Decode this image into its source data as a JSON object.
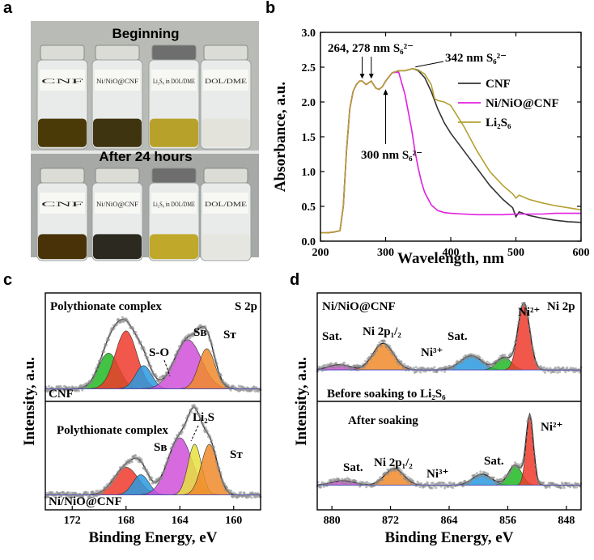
{
  "panels": {
    "a": "a",
    "b": "b",
    "c": "c",
    "d": "d"
  },
  "photo": {
    "top_caption": "Beginning",
    "bottom_caption": "After 24 hours",
    "vials": [
      {
        "label": "CNF",
        "liquid": "#4a3a08"
      },
      {
        "label": "Ni/NiO@CNF",
        "liquid": "#3e3410"
      },
      {
        "label": "Li₂S₆ in DOL/DME",
        "liquid": "#b8a12a"
      },
      {
        "label": "DOL/DME",
        "liquid": "#e3e3dc"
      }
    ],
    "vials_after": [
      {
        "label": "CNF",
        "liquid": "#4a3208"
      },
      {
        "label": "Ni/NiO@CNF",
        "liquid": "#2c2a20"
      },
      {
        "label": "Li₂S₆ in DOL/DME",
        "liquid": "#c0a82a"
      },
      {
        "label": "DOL/DME",
        "liquid": "#e6e6e0"
      }
    ]
  },
  "chart_data": [
    {
      "id": "b",
      "type": "line",
      "xlabel": "Wavelength, nm",
      "ylabel": "Absorbance, a.u.",
      "xlim": [
        200,
        600
      ],
      "ylim": [
        0.0,
        3.0
      ],
      "xticks": [
        "200",
        "300",
        "400",
        "500",
        "600"
      ],
      "yticks": [
        "0.0",
        "0.5",
        "1.0",
        "1.5",
        "2.0",
        "2.5",
        "3.0"
      ],
      "legend_position": "right",
      "series": [
        {
          "name": "CNF",
          "color": "#333333",
          "x": [
            200,
            210,
            220,
            230,
            235,
            240,
            245,
            250,
            255,
            260,
            264,
            270,
            278,
            285,
            290,
            295,
            300,
            310,
            320,
            330,
            342,
            350,
            360,
            370,
            380,
            390,
            400,
            420,
            440,
            460,
            480,
            495,
            500,
            505,
            520,
            540,
            560,
            580,
            600
          ],
          "y": [
            0.12,
            0.12,
            0.13,
            0.15,
            0.5,
            1.3,
            1.9,
            2.15,
            2.25,
            2.3,
            2.3,
            2.25,
            2.3,
            2.2,
            2.18,
            2.22,
            2.3,
            2.42,
            2.45,
            2.45,
            2.48,
            2.45,
            2.35,
            2.15,
            1.9,
            1.7,
            1.55,
            1.3,
            1.05,
            0.8,
            0.6,
            0.48,
            0.35,
            0.42,
            0.37,
            0.33,
            0.3,
            0.28,
            0.27
          ]
        },
        {
          "name": "Ni/NiO@CNF",
          "color": "#e020e0",
          "x": [
            200,
            210,
            220,
            230,
            235,
            240,
            245,
            250,
            255,
            260,
            264,
            270,
            278,
            285,
            290,
            295,
            300,
            310,
            320,
            330,
            340,
            345,
            350,
            355,
            360,
            370,
            380,
            390,
            400,
            420,
            440,
            460,
            480,
            500,
            520,
            540,
            560,
            580,
            600
          ],
          "y": [
            0.12,
            0.12,
            0.13,
            0.15,
            0.5,
            1.3,
            1.9,
            2.15,
            2.25,
            2.3,
            2.3,
            2.25,
            2.3,
            2.2,
            2.18,
            2.22,
            2.3,
            2.42,
            2.43,
            2.1,
            1.6,
            1.3,
            1.05,
            0.85,
            0.7,
            0.52,
            0.44,
            0.41,
            0.4,
            0.39,
            0.38,
            0.38,
            0.38,
            0.39,
            0.39,
            0.39,
            0.4,
            0.4,
            0.4
          ]
        },
        {
          "name": "Li₂S₆",
          "color": "#b4a030",
          "x": [
            200,
            210,
            220,
            230,
            235,
            240,
            245,
            250,
            255,
            260,
            264,
            270,
            278,
            285,
            290,
            295,
            300,
            310,
            320,
            330,
            342,
            350,
            360,
            370,
            375,
            380,
            390,
            400,
            420,
            440,
            460,
            480,
            495,
            500,
            505,
            520,
            540,
            560,
            580,
            600
          ],
          "y": [
            0.12,
            0.12,
            0.13,
            0.15,
            0.5,
            1.3,
            1.9,
            2.15,
            2.25,
            2.3,
            2.3,
            2.25,
            2.3,
            2.2,
            2.18,
            2.22,
            2.3,
            2.42,
            2.45,
            2.45,
            2.48,
            2.46,
            2.4,
            2.25,
            2.05,
            2.02,
            2.0,
            1.95,
            1.65,
            1.3,
            1.0,
            0.8,
            0.68,
            0.62,
            0.66,
            0.6,
            0.55,
            0.51,
            0.48,
            0.45
          ]
        }
      ],
      "annotations": [
        {
          "text": "264, 278 nm S₆²⁻",
          "x": 271,
          "y": 2.3
        },
        {
          "text": "342 nm S₆²⁻",
          "x": 342,
          "y": 2.48
        },
        {
          "text": "300 nm S₆²⁻",
          "x": 300,
          "y": 2.3
        }
      ]
    },
    {
      "id": "c",
      "type": "area",
      "xlabel": "Binding Energy, eV",
      "ylabel": "Intensity, a.u.",
      "xlim": [
        174,
        158
      ],
      "xticks": [
        "172",
        "168",
        "164",
        "160"
      ],
      "title": "S 2p",
      "top_label": "CNF",
      "bottom_label": "Ni/NiO@CNF",
      "top_annotations": [
        "Polythionate complex",
        "S-O",
        "Sʙ",
        "Sᴛ"
      ],
      "bottom_annotations": [
        "Polythionate complex",
        "Li₂S",
        "Sʙ",
        "Sᴛ"
      ],
      "top_peaks": [
        {
          "center": 169.3,
          "height": 0.4,
          "width": 0.75,
          "color": "#22b822"
        },
        {
          "center": 168.0,
          "height": 0.65,
          "width": 0.8,
          "color": "#ee3a2a"
        },
        {
          "center": 166.7,
          "height": 0.26,
          "width": 0.6,
          "color": "#2a9adf"
        },
        {
          "center": 163.4,
          "height": 0.55,
          "width": 1.0,
          "color": "#d050d8"
        },
        {
          "center": 162.0,
          "height": 0.45,
          "width": 0.6,
          "color": "#f08a2a"
        }
      ],
      "bottom_peaks": [
        {
          "center": 168.0,
          "height": 0.3,
          "width": 0.9,
          "color": "#ee3a2a"
        },
        {
          "center": 166.9,
          "height": 0.22,
          "width": 0.6,
          "color": "#2a9adf"
        },
        {
          "center": 164.0,
          "height": 0.62,
          "width": 0.9,
          "color": "#d050d8"
        },
        {
          "center": 162.9,
          "height": 0.55,
          "width": 0.5,
          "color": "#e8e040"
        },
        {
          "center": 161.8,
          "height": 0.55,
          "width": 0.6,
          "color": "#f08a2a"
        }
      ]
    },
    {
      "id": "d",
      "type": "area",
      "xlabel": "Binding Energy, eV",
      "ylabel": "Intensity, a.u.",
      "xlim": [
        882,
        846
      ],
      "xticks": [
        "880",
        "872",
        "864",
        "856",
        "848"
      ],
      "title": "Ni 2p",
      "top_label": "Ni/NiO@CNF",
      "bottom_label": "After soaking",
      "top_note": "Before soaking to Li₂S₆",
      "top_annotations": [
        "Sat.",
        "Ni 2p₁/₂",
        "Ni³⁺",
        "Sat.",
        "Ni²⁺"
      ],
      "bottom_annotations": [
        "Sat.",
        "Ni 2p₁/₂",
        "Ni³⁺",
        "Sat.",
        "Ni²⁺"
      ],
      "top_peaks": [
        {
          "center": 879.0,
          "height": 0.06,
          "width": 1.5,
          "color": "#d050d8"
        },
        {
          "center": 873.0,
          "height": 0.3,
          "width": 1.4,
          "color": "#f08a2a"
        },
        {
          "center": 861.0,
          "height": 0.16,
          "width": 1.5,
          "color": "#2a9adf"
        },
        {
          "center": 856.5,
          "height": 0.14,
          "width": 1.0,
          "color": "#22b822"
        },
        {
          "center": 853.8,
          "height": 0.75,
          "width": 0.8,
          "color": "#ee3a2a"
        }
      ],
      "bottom_peaks": [
        {
          "center": 878.5,
          "height": 0.05,
          "width": 1.5,
          "color": "#d050d8"
        },
        {
          "center": 871.5,
          "height": 0.18,
          "width": 1.3,
          "color": "#f08a2a"
        },
        {
          "center": 859.5,
          "height": 0.12,
          "width": 1.3,
          "color": "#2a9adf"
        },
        {
          "center": 855.0,
          "height": 0.22,
          "width": 0.9,
          "color": "#22b822"
        },
        {
          "center": 853.0,
          "height": 0.75,
          "width": 0.5,
          "color": "#ee3a2a"
        }
      ]
    }
  ]
}
